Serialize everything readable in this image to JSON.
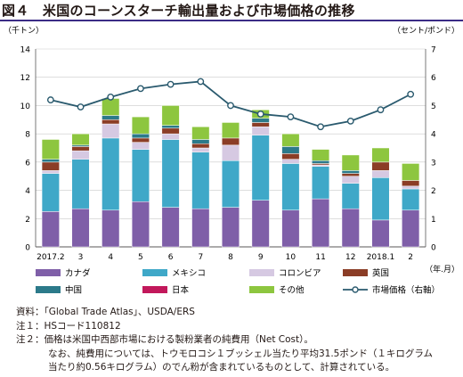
{
  "title": "図４　米国のコーンスターチ輸出量および市場価格の推移",
  "chart_data": {
    "type": "bar",
    "stacked": true,
    "left_unit": "（千トン）",
    "right_unit": "（セント/ポンド）",
    "x_unit": "（年.月）",
    "categories": [
      "2017.2",
      "3",
      "4",
      "5",
      "6",
      "7",
      "8",
      "9",
      "10",
      "11",
      "12",
      "2018.1",
      "2"
    ],
    "ylim_left": [
      0,
      14
    ],
    "yticks_left": [
      0,
      2,
      4,
      6,
      8,
      10,
      12,
      14
    ],
    "ylim_right": [
      0,
      7
    ],
    "yticks_right": [
      0,
      1,
      2,
      3,
      4,
      5,
      6,
      7
    ],
    "grid": true,
    "series": [
      {
        "name": "カナダ",
        "color": "#7f5fa8",
        "values": [
          2.5,
          2.7,
          2.6,
          3.2,
          2.8,
          2.7,
          2.8,
          3.3,
          2.6,
          3.4,
          2.7,
          1.9,
          2.6
        ]
      },
      {
        "name": "メキシコ",
        "color": "#3fa8c8",
        "values": [
          2.7,
          3.5,
          5.1,
          3.7,
          4.8,
          4.0,
          3.3,
          4.6,
          3.3,
          2.3,
          1.8,
          3.0,
          1.5
        ]
      },
      {
        "name": "コロンビア",
        "color": "#d6c9e2",
        "values": [
          0.2,
          0.6,
          1.0,
          0.5,
          0.4,
          0.3,
          1.1,
          0.6,
          0.3,
          0.1,
          0.5,
          0.5,
          0.2
        ]
      },
      {
        "name": "英国",
        "color": "#8b3d26",
        "values": [
          0.6,
          0.3,
          0.3,
          0.3,
          0.4,
          0.3,
          0.5,
          0.3,
          0.4,
          0.1,
          0.2,
          0.6,
          0.4
        ]
      },
      {
        "name": "中国",
        "color": "#2c7a8a",
        "values": [
          0.2,
          0.1,
          0.3,
          0.3,
          0.2,
          0.3,
          0.0,
          0.3,
          0.5,
          0.2,
          0.2,
          0.0,
          0.0
        ]
      },
      {
        "name": "日本",
        "color": "#c2185b",
        "values": [
          0.0,
          0.0,
          0.0,
          0.0,
          0.0,
          0.0,
          0.0,
          0.0,
          0.0,
          0.0,
          0.0,
          0.0,
          0.0
        ]
      },
      {
        "name": "その他",
        "color": "#8dc63f",
        "values": [
          1.4,
          0.8,
          1.2,
          1.2,
          1.4,
          0.9,
          1.1,
          0.6,
          0.9,
          0.8,
          1.1,
          1.0,
          1.2
        ]
      }
    ],
    "line": {
      "name": "市場価格（右軸）",
      "color": "#2a5a6e",
      "values": [
        5.2,
        4.95,
        5.3,
        5.6,
        5.75,
        5.85,
        5.0,
        4.7,
        4.6,
        4.25,
        4.45,
        4.85,
        5.4
      ]
    },
    "legend_order": [
      [
        "カナダ",
        "メキシコ",
        "コロンビア",
        "英国"
      ],
      [
        "中国",
        "日本",
        "その他",
        "市場価格（右軸）"
      ]
    ]
  },
  "notes": [
    {
      "label": "資料：",
      "text": "「Global Trade Atlas」、USDA/ERS"
    },
    {
      "label": "注１：",
      "text": "HSコード110812"
    },
    {
      "label": "注２：",
      "text": "価格は米国中西部市場における製粉業者の純費用（Net Cost）。"
    },
    {
      "label": "",
      "text": "なお、純費用については、トウモロコシ１ブッシェル当たり平均31.5ポンド（１キログラム"
    },
    {
      "label": "",
      "text": "当たり約0.56キログラム）のでん粉が含まれているものとして、計算されている。"
    }
  ]
}
